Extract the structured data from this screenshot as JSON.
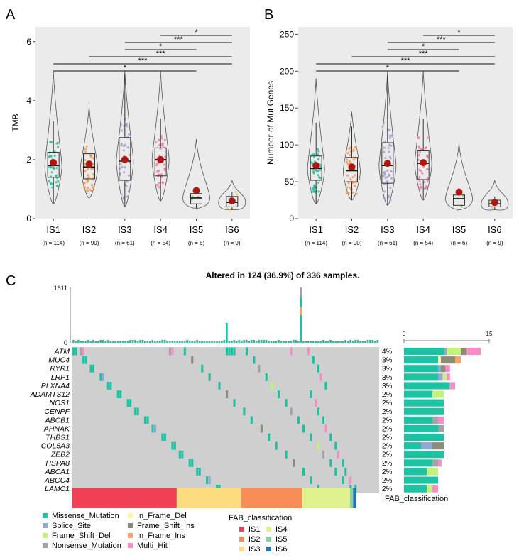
{
  "chart_data": [
    {
      "panel": "A",
      "type": "box-violin",
      "ylabel": "TMB",
      "ylim": [
        0,
        6.5
      ],
      "yticks": [
        0,
        2,
        4,
        6
      ],
      "groups": [
        {
          "name": "IS1",
          "n_label": "(n = 114)",
          "min": 0.5,
          "q1": 1.4,
          "median": 1.8,
          "q3": 2.25,
          "max": 3.3,
          "mean": 1.9,
          "outlier_max": 5.0,
          "color": "#1fb89a"
        },
        {
          "name": "IS2",
          "n_label": "(n = 90)",
          "min": 0.7,
          "q1": 1.35,
          "median": 1.75,
          "q3": 2.2,
          "max": 3.2,
          "mean": 1.85,
          "outlier_max": 3.8,
          "color": "#f0924a"
        },
        {
          "name": "IS3",
          "n_label": "(n = 61)",
          "min": 0.4,
          "q1": 1.3,
          "median": 1.95,
          "q3": 2.75,
          "max": 4.9,
          "mean": 2.0,
          "outlier_max": 5.0,
          "color": "#9a9ac8"
        },
        {
          "name": "IS4",
          "n_label": "(n = 54)",
          "min": 0.6,
          "q1": 1.45,
          "median": 2.0,
          "q3": 2.4,
          "max": 3.4,
          "mean": 2.0,
          "outlier_max": 5.0,
          "color": "#e97aa8"
        },
        {
          "name": "IS5",
          "n_label": "(n = 6)",
          "min": 0.35,
          "q1": 0.5,
          "median": 0.7,
          "q3": 0.85,
          "max": 1.0,
          "mean": 0.95,
          "outlier_max": 2.7,
          "color": "#8cc07c"
        },
        {
          "name": "IS6",
          "n_label": "(n = 9)",
          "min": 0.3,
          "q1": 0.4,
          "median": 0.55,
          "q3": 0.75,
          "max": 0.9,
          "mean": 0.6,
          "outlier_max": 1.3,
          "color": "#e8cc60"
        }
      ],
      "comparisons": [
        {
          "from": "IS4",
          "to": "IS6",
          "label": "*"
        },
        {
          "from": "IS3",
          "to": "IS6",
          "label": "***"
        },
        {
          "from": "IS3",
          "to": "IS5",
          "label": "*"
        },
        {
          "from": "IS2",
          "to": "IS6",
          "label": "***"
        },
        {
          "from": "IS1",
          "to": "IS6",
          "label": "***"
        },
        {
          "from": "IS1",
          "to": "IS5",
          "label": "*"
        }
      ]
    },
    {
      "panel": "B",
      "type": "box-violin",
      "ylabel": "Number of Mut Genes",
      "ylim": [
        0,
        260
      ],
      "yticks": [
        0,
        50,
        100,
        150,
        200,
        250
      ],
      "groups": [
        {
          "name": "IS1",
          "n_label": "(n = 114)",
          "min": 20,
          "q1": 52,
          "median": 68,
          "q3": 85,
          "max": 130,
          "mean": 72,
          "outlier_max": 190,
          "color": "#1fb89a"
        },
        {
          "name": "IS2",
          "n_label": "(n = 90)",
          "min": 25,
          "q1": 50,
          "median": 65,
          "q3": 83,
          "max": 125,
          "mean": 70,
          "outlier_max": 145,
          "color": "#f0924a"
        },
        {
          "name": "IS3",
          "n_label": "(n = 61)",
          "min": 18,
          "q1": 48,
          "median": 72,
          "q3": 103,
          "max": 195,
          "mean": 75,
          "outlier_max": 200,
          "color": "#9a9ac8"
        },
        {
          "name": "IS4",
          "n_label": "(n = 54)",
          "min": 25,
          "q1": 53,
          "median": 75,
          "q3": 92,
          "max": 135,
          "mean": 76,
          "outlier_max": 200,
          "color": "#e97aa8"
        },
        {
          "name": "IS5",
          "n_label": "(n = 6)",
          "min": 12,
          "q1": 18,
          "median": 27,
          "q3": 32,
          "max": 40,
          "mean": 36,
          "outlier_max": 102,
          "color": "#8cc07c"
        },
        {
          "name": "IS6",
          "n_label": "(n = 9)",
          "min": 12,
          "q1": 16,
          "median": 20,
          "q3": 25,
          "max": 30,
          "mean": 22,
          "outlier_max": 52,
          "color": "#e8cc60"
        }
      ],
      "comparisons": [
        {
          "from": "IS4",
          "to": "IS6",
          "label": "*"
        },
        {
          "from": "IS3",
          "to": "IS6",
          "label": "***"
        },
        {
          "from": "IS3",
          "to": "IS5",
          "label": "*"
        },
        {
          "from": "IS2",
          "to": "IS6",
          "label": "***"
        },
        {
          "from": "IS1",
          "to": "IS6",
          "label": "***"
        },
        {
          "from": "IS1",
          "to": "IS5",
          "label": "*"
        }
      ]
    },
    {
      "panel": "C",
      "type": "oncoprint",
      "title": "Altered in 124 (36.9%) of 336 samples.",
      "top_bar_max": "1611",
      "top_bar_zero": "0",
      "right_axis_ticks": [
        "0",
        "15"
      ],
      "right_axis_max": 15,
      "genes": [
        {
          "name": "ATM",
          "pct": "4%",
          "composition": {
            "Missense_Mutation": 7,
            "Splice_Site": 0.5,
            "Frame_Shift_Del": 2.5,
            "Frame_Shift_Ins": 1,
            "Multi_Hit": 2.5
          }
        },
        {
          "name": "MUC4",
          "pct": "3%",
          "composition": {
            "Missense_Mutation": 6,
            "In_Frame_Del": 0.5,
            "Frame_Shift_Ins": 2.5,
            "In_Frame_Ins": 1
          }
        },
        {
          "name": "RYR1",
          "pct": "3%",
          "composition": {
            "Missense_Mutation": 6,
            "Splice_Site": 0.5,
            "Frame_Shift_Ins": 0.8,
            "Multi_Hit": 0.8
          }
        },
        {
          "name": "LRP1",
          "pct": "3%",
          "composition": {
            "Missense_Mutation": 6,
            "Splice_Site": 0.8,
            "Frame_Shift_Del": 0.7,
            "Multi_Hit": 0.6
          }
        },
        {
          "name": "PLXNA4",
          "pct": "3%",
          "composition": {
            "Missense_Mutation": 8,
            "Multi_Hit": 1
          }
        },
        {
          "name": "ADAMTS12",
          "pct": "2%",
          "composition": {
            "Missense_Mutation": 5,
            "Frame_Shift_Del": 2
          }
        },
        {
          "name": "NOS1",
          "pct": "2%",
          "composition": {
            "Missense_Mutation": 7
          }
        },
        {
          "name": "CENPF",
          "pct": "2%",
          "composition": {
            "Missense_Mutation": 7
          }
        },
        {
          "name": "ABCB1",
          "pct": "2%",
          "composition": {
            "Missense_Mutation": 5,
            "Nonsense_Mutation": 1,
            "Multi_Hit": 1
          }
        },
        {
          "name": "AHNAK",
          "pct": "2%",
          "composition": {
            "Missense_Mutation": 6,
            "Nonsense_Mutation": 1
          }
        },
        {
          "name": "THBS1",
          "pct": "2%",
          "composition": {
            "Missense_Mutation": 7
          }
        },
        {
          "name": "COL5A3",
          "pct": "2%",
          "composition": {
            "Missense_Mutation": 3,
            "Splice_Site": 2,
            "Frame_Shift_Ins": 2
          }
        },
        {
          "name": "ZEB2",
          "pct": "2%",
          "composition": {
            "Missense_Mutation": 7
          }
        },
        {
          "name": "HSPA8",
          "pct": "2%",
          "composition": {
            "Missense_Mutation": 5,
            "Nonsense_Mutation": 1,
            "Multi_Hit": 0.6
          }
        },
        {
          "name": "ABCA1",
          "pct": "2%",
          "composition": {
            "Missense_Mutation": 4,
            "Frame_Shift_Del": 2
          }
        },
        {
          "name": "ABCC4",
          "pct": "2%",
          "composition": {
            "Missense_Mutation": 6
          }
        },
        {
          "name": "LAMC1",
          "pct": "2%",
          "composition": {
            "Missense_Mutation": 4,
            "Frame_Shift_Del": 1,
            "Multi_Hit": 1
          }
        }
      ],
      "fab_classification": [
        {
          "group": "IS1",
          "fraction": 0.34
        },
        {
          "group": "IS3",
          "fraction": 0.21
        },
        {
          "group": "IS2",
          "fraction": 0.2
        },
        {
          "group": "IS4",
          "fraction": 0.155
        },
        {
          "group": "IS5",
          "fraction": 0.01
        },
        {
          "group": "IS6",
          "fraction": 0.01
        }
      ]
    }
  ],
  "labels": {
    "panel_a": "A",
    "panel_b": "B",
    "panel_c": "C",
    "fab_label": "FAB_classification",
    "fab_legend_title": "FAB_classification"
  },
  "variant_legend": [
    {
      "name": "Missense_Mutation",
      "color": "#1cc3a2"
    },
    {
      "name": "Splice_Site",
      "color": "#8fa8d6"
    },
    {
      "name": "Frame_Shift_Del",
      "color": "#c5f07a"
    },
    {
      "name": "Nonsense_Mutation",
      "color": "#a3a3a3"
    },
    {
      "name": "In_Frame_Del",
      "color": "#fff3a8"
    },
    {
      "name": "Frame_Shift_Ins",
      "color": "#8c8c78"
    },
    {
      "name": "In_Frame_Ins",
      "color": "#f7a06a"
    },
    {
      "name": "Multi_Hit",
      "color": "#f78cc8"
    }
  ],
  "fab_legend": [
    {
      "name": "IS1",
      "color": "#ef4055"
    },
    {
      "name": "IS2",
      "color": "#f88e57"
    },
    {
      "name": "IS3",
      "color": "#fddc80"
    },
    {
      "name": "IS4",
      "color": "#dff28e"
    },
    {
      "name": "IS5",
      "color": "#86d19e"
    },
    {
      "name": "IS6",
      "color": "#2574b6"
    }
  ]
}
